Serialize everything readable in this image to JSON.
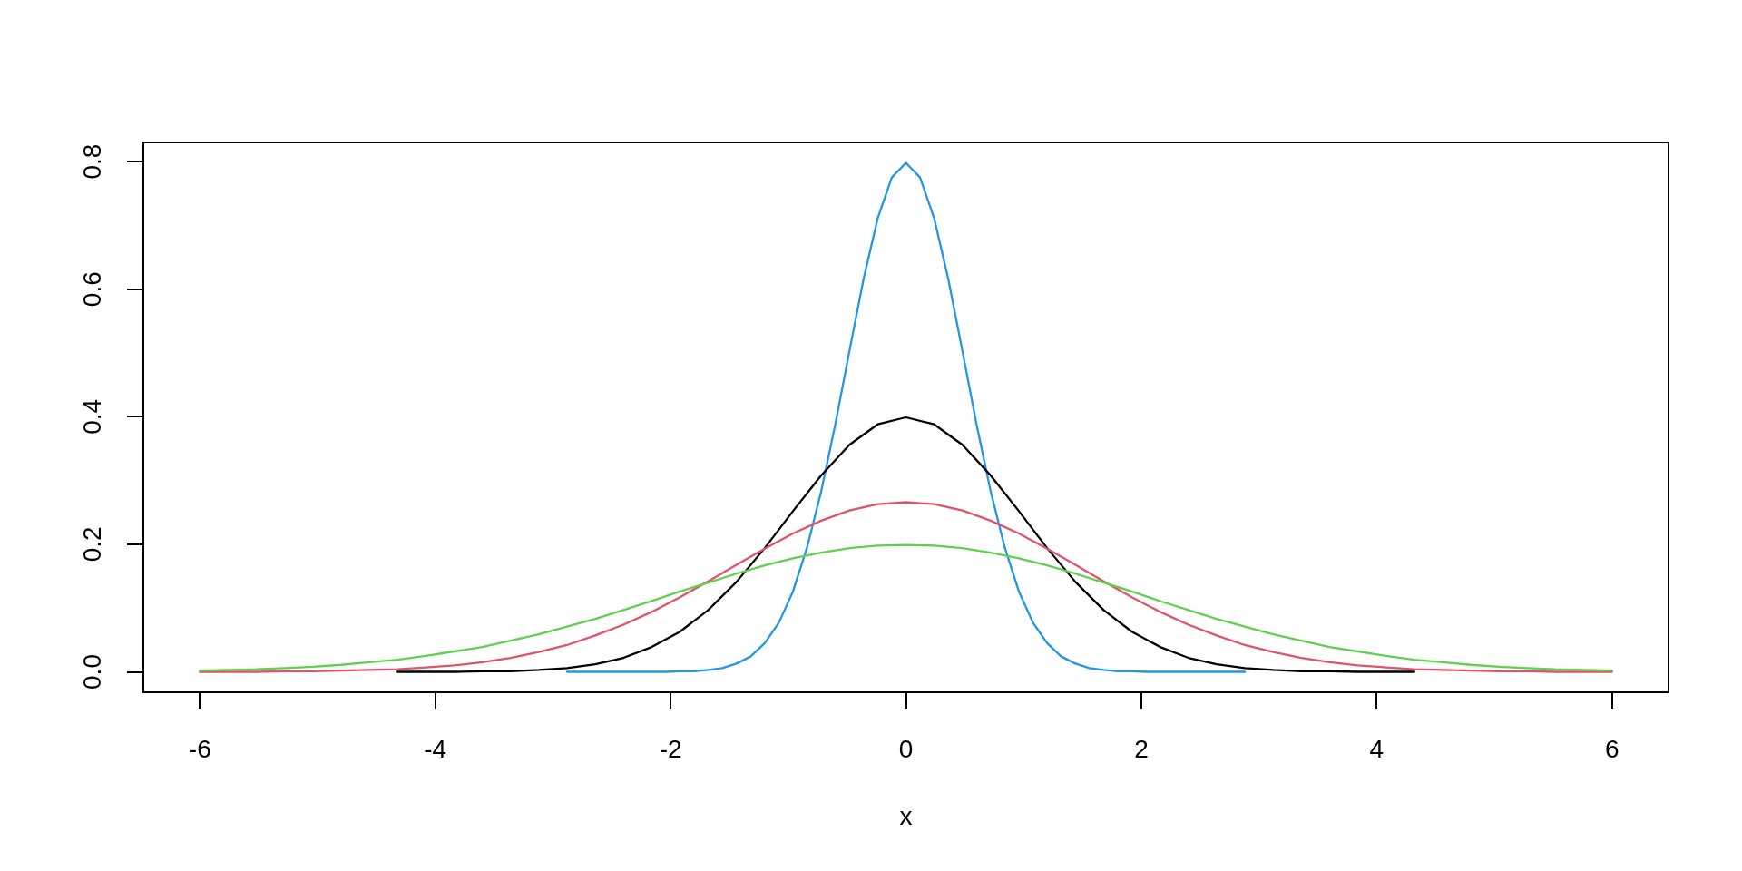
{
  "chart_data": {
    "type": "line",
    "xlabel": "x",
    "xlim": [
      -6.48,
      6.48
    ],
    "ylim": [
      -0.032,
      0.83
    ],
    "xticks": [
      -6,
      -4,
      -2,
      0,
      2,
      4,
      6
    ],
    "yticks": [
      {
        "value": 0,
        "label": "0.0"
      },
      0.2,
      0.4,
      0.6,
      0.8
    ],
    "x": [
      -6,
      -5.76,
      -5.52,
      -5.28,
      -5.04,
      -4.8,
      -4.56,
      -4.32,
      -4.08,
      -3.84,
      -3.6,
      -3.36,
      -3.12,
      -2.88,
      -2.64,
      -2.4,
      -2.16,
      -1.92,
      -1.68,
      -1.44,
      -1.2,
      -0.96,
      -0.72,
      -0.48,
      -0.24,
      0,
      0.24,
      0.48,
      0.72,
      0.96,
      1.2,
      1.44,
      1.68,
      1.92,
      2.16,
      2.4,
      2.64,
      2.88,
      3.12,
      3.36,
      3.6,
      3.84,
      4.08,
      4.32,
      4.56,
      4.8,
      5.04,
      5.28,
      5.52,
      5.76,
      6
    ],
    "series": [
      {
        "color": "#2297e6",
        "x": [
          -2.88,
          -2.52,
          -2.16,
          -2.04,
          -1.92,
          -1.8,
          -1.68,
          -1.56,
          -1.44,
          -1.32,
          -1.2,
          -1.08,
          -0.96,
          -0.84,
          -0.72,
          -0.6,
          -0.48,
          -0.36,
          -0.24,
          -0.12,
          0,
          0.12,
          0.24,
          0.36,
          0.48,
          0.6,
          0.72,
          0.84,
          0.96,
          1.08,
          1.2,
          1.32,
          1.44,
          1.56,
          1.68,
          1.8,
          1.92,
          2.04,
          2.16,
          2.52,
          2.88
        ],
        "values": [
          0,
          0,
          0,
          0,
          0.001,
          0.001,
          0.003,
          0.006,
          0.013,
          0.024,
          0.045,
          0.077,
          0.126,
          0.195,
          0.283,
          0.388,
          0.503,
          0.616,
          0.711,
          0.775,
          0.798,
          0.775,
          0.711,
          0.616,
          0.503,
          0.388,
          0.283,
          0.195,
          0.126,
          0.077,
          0.045,
          0.024,
          0.013,
          0.006,
          0.003,
          0.001,
          0.001,
          0,
          0,
          0,
          0
        ]
      },
      {
        "color": "#000000",
        "values": [
          null,
          null,
          null,
          null,
          null,
          null,
          null,
          0,
          0,
          0,
          0.001,
          0.001,
          0.003,
          0.006,
          0.012,
          0.022,
          0.039,
          0.063,
          0.097,
          0.141,
          0.194,
          0.252,
          0.308,
          0.356,
          0.388,
          0.399,
          0.388,
          0.356,
          0.308,
          0.252,
          0.194,
          0.141,
          0.097,
          0.063,
          0.039,
          0.022,
          0.012,
          0.006,
          0.003,
          0.001,
          0.001,
          0,
          0,
          0,
          null,
          null,
          null,
          null,
          null,
          null,
          null
        ]
      },
      {
        "color": "#df536b",
        "values": [
          0,
          0,
          0,
          0.001,
          0.001,
          0.002,
          0.003,
          0.004,
          0.007,
          0.01,
          0.015,
          0.022,
          0.031,
          0.042,
          0.057,
          0.074,
          0.094,
          0.117,
          0.142,
          0.168,
          0.193,
          0.217,
          0.237,
          0.253,
          0.263,
          0.266,
          0.263,
          0.253,
          0.237,
          0.217,
          0.193,
          0.168,
          0.142,
          0.117,
          0.094,
          0.074,
          0.057,
          0.042,
          0.031,
          0.022,
          0.015,
          0.01,
          0.007,
          0.004,
          0.003,
          0.002,
          0.001,
          0.001,
          0,
          0,
          0
        ]
      },
      {
        "color": "#61d04f",
        "values": [
          0.002,
          0.003,
          0.004,
          0.006,
          0.008,
          0.011,
          0.015,
          0.019,
          0.025,
          0.032,
          0.039,
          0.049,
          0.059,
          0.071,
          0.083,
          0.097,
          0.111,
          0.126,
          0.14,
          0.154,
          0.167,
          0.178,
          0.187,
          0.194,
          0.198,
          0.199,
          0.198,
          0.194,
          0.187,
          0.178,
          0.167,
          0.154,
          0.14,
          0.126,
          0.111,
          0.097,
          0.083,
          0.071,
          0.059,
          0.049,
          0.039,
          0.032,
          0.025,
          0.019,
          0.015,
          0.011,
          0.008,
          0.006,
          0.004,
          0.003,
          0.002
        ]
      }
    ]
  }
}
